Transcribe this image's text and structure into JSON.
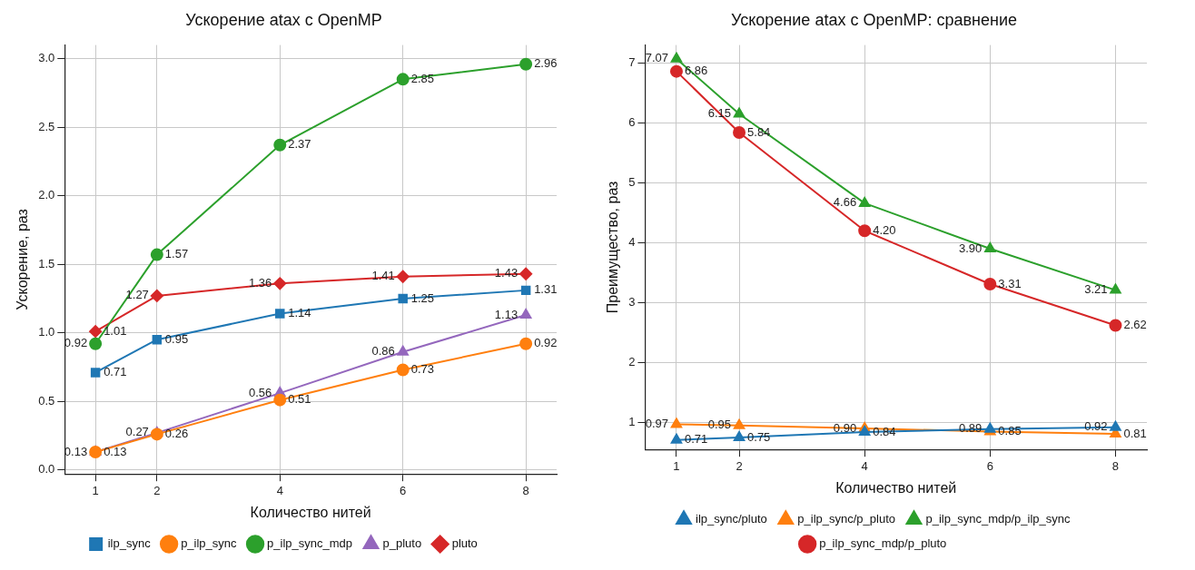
{
  "chart_data": [
    {
      "type": "line",
      "title": "Ускорение atax с OpenMP",
      "xlabel": "Количество нитей",
      "ylabel": "Ускорение, раз",
      "x": [
        1,
        2,
        4,
        6,
        8
      ],
      "xlim": [
        0.5,
        8.5
      ],
      "xticks": [
        1,
        2,
        4,
        6,
        8
      ],
      "ylim": [
        -0.03,
        3.1
      ],
      "yticks": [
        {
          "value": 0,
          "label": "0.0"
        },
        0.5,
        {
          "value": 1,
          "label": "1.0"
        },
        1.5,
        {
          "value": 2,
          "label": "2.0"
        },
        2.5,
        {
          "value": 3,
          "label": "3.0"
        }
      ],
      "grid": true,
      "legend": "bottom",
      "series": [
        {
          "name": "ilp_sync",
          "color": "#1f77b4",
          "marker": "square",
          "values": [
            0.71,
            0.95,
            1.14,
            1.25,
            1.31
          ],
          "value_labels": [
            "0.71",
            "0.95",
            "1.14",
            "1.25",
            "1.31"
          ]
        },
        {
          "name": "p_ilp_sync",
          "color": "#ff7f0e",
          "marker": "circle",
          "values": [
            0.13,
            0.26,
            0.51,
            0.73,
            0.92
          ],
          "value_labels": [
            "0.13",
            "0.26",
            "0.51",
            "0.73",
            "0.92"
          ]
        },
        {
          "name": "p_ilp_sync_mdp",
          "color": "#2ca02c",
          "marker": "circle",
          "values": [
            0.92,
            1.57,
            2.37,
            2.85,
            2.96
          ],
          "value_labels": [
            "0.92",
            "1.57",
            "2.37",
            "2.85",
            "2.96"
          ]
        },
        {
          "name": "p_pluto",
          "color": "#9467bd",
          "marker": "triangle",
          "values": [
            0.13,
            0.27,
            0.56,
            0.86,
            1.13
          ],
          "value_labels": [
            "0.13",
            "0.27",
            "0.56",
            "0.86",
            "1.13"
          ]
        },
        {
          "name": "pluto",
          "color": "#d62728",
          "marker": "diamond",
          "values": [
            1.01,
            1.27,
            1.36,
            1.41,
            1.43
          ],
          "value_labels": [
            "1.01",
            "1.27",
            "1.36",
            "1.41",
            "1.43"
          ]
        }
      ]
    },
    {
      "type": "line",
      "title": "Ускорение atax с OpenMP: сравнение",
      "xlabel": "Количество нитей",
      "ylabel": "Преимущество, раз",
      "x": [
        1,
        2,
        4,
        6,
        8
      ],
      "xlim": [
        0.5,
        8.5
      ],
      "xticks": [
        1,
        2,
        4,
        6,
        8
      ],
      "ylim": [
        0.55,
        7.3
      ],
      "yticks": [
        1,
        2,
        3,
        4,
        5,
        6,
        7
      ],
      "grid": true,
      "legend": "bottom",
      "series": [
        {
          "name": "ilp_sync/pluto",
          "color": "#1f77b4",
          "marker": "triangle",
          "values": [
            0.71,
            0.75,
            0.84,
            0.89,
            0.92
          ],
          "value_labels": [
            "0.71",
            "0.75",
            "0.84",
            "0.89",
            "0.92"
          ]
        },
        {
          "name": "p_ilp_sync/p_pluto",
          "color": "#ff7f0e",
          "marker": "triangle",
          "values": [
            0.97,
            0.95,
            0.9,
            0.85,
            0.81
          ],
          "value_labels": [
            "0.97",
            "0.95",
            "0.90",
            "0.85",
            "0.81"
          ]
        },
        {
          "name": "p_ilp_sync_mdp/p_ilp_sync",
          "color": "#2ca02c",
          "marker": "triangle",
          "values": [
            7.07,
            6.15,
            4.66,
            3.9,
            3.21
          ],
          "value_labels": [
            "7.07",
            "6.15",
            "4.66",
            "3.90",
            "3.21"
          ]
        },
        {
          "name": "p_ilp_sync_mdp/p_pluto",
          "color": "#d62728",
          "marker": "circle",
          "values": [
            6.86,
            5.84,
            4.2,
            3.31,
            2.62
          ],
          "value_labels": [
            "6.86",
            "5.84",
            "4.20",
            "3.31",
            "2.62"
          ]
        }
      ]
    }
  ]
}
